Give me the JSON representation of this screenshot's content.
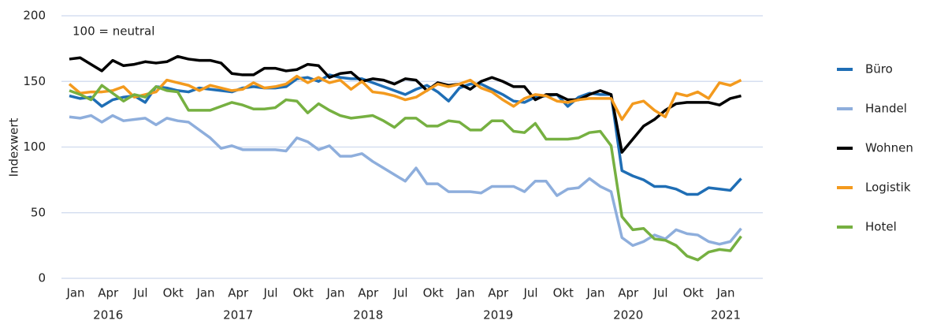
{
  "chart_data": {
    "type": "line",
    "annotation": "100 = neutral",
    "y_label": "Indexwert",
    "categories": [
      "Jan",
      null,
      null,
      "Apr",
      null,
      null,
      "Jul",
      null,
      null,
      "Okt",
      null,
      null,
      "Jan",
      null,
      null,
      "Apr",
      null,
      null,
      "Jul",
      null,
      null,
      "Okt",
      null,
      null,
      "Jan",
      null,
      null,
      "Apr",
      null,
      null,
      "Jul",
      null,
      null,
      "Okt",
      null,
      null,
      "Jan",
      null,
      null,
      "Apr",
      null,
      null,
      "Jul",
      null,
      null,
      "Okt",
      null,
      null,
      "Jan",
      null,
      null,
      "Apr",
      null,
      null,
      "Jul",
      null,
      null,
      "Okt",
      null,
      null,
      "Jan",
      null,
      null
    ],
    "years": [
      "2016",
      "2017",
      "2018",
      "2019",
      "2020",
      "2021"
    ],
    "ylim": [
      0,
      200
    ],
    "yticks": [
      0,
      50,
      100,
      150,
      200
    ],
    "grid": true,
    "legend": "right",
    "series": [
      {
        "name": "Büro",
        "color": "#1f6eb5",
        "values": [
          139,
          137,
          138,
          131,
          136,
          138,
          139,
          134,
          146,
          145,
          143,
          142,
          145,
          144,
          143,
          142,
          145,
          146,
          145,
          145,
          146,
          152,
          153,
          150,
          155,
          153,
          152,
          152,
          149,
          146,
          143,
          140,
          144,
          147,
          142,
          135,
          145,
          148,
          148,
          144,
          140,
          135,
          134,
          138,
          139,
          140,
          131,
          138,
          141,
          140,
          140,
          82,
          78,
          75,
          70,
          70,
          68,
          64,
          64,
          69,
          68,
          67,
          76
        ]
      },
      {
        "name": "Handel",
        "color": "#8eaedc",
        "values": [
          123,
          122,
          124,
          119,
          124,
          120,
          121,
          122,
          117,
          122,
          120,
          119,
          113,
          107,
          99,
          101,
          98,
          98,
          98,
          98,
          97,
          107,
          104,
          98,
          101,
          93,
          93,
          95,
          89,
          84,
          79,
          74,
          84,
          72,
          72,
          66,
          66,
          66,
          65,
          70,
          70,
          70,
          66,
          74,
          74,
          63,
          68,
          69,
          76,
          70,
          66,
          31,
          25,
          28,
          33,
          30,
          37,
          34,
          33,
          28,
          26,
          28,
          38
        ]
      },
      {
        "name": "Wohnen",
        "color": "#000000",
        "values": [
          167,
          168,
          163,
          158,
          166,
          162,
          163,
          165,
          164,
          165,
          169,
          167,
          166,
          166,
          164,
          156,
          155,
          155,
          160,
          160,
          158,
          159,
          163,
          162,
          153,
          156,
          157,
          150,
          152,
          151,
          148,
          152,
          151,
          143,
          149,
          147,
          148,
          144,
          150,
          153,
          150,
          146,
          146,
          136,
          140,
          140,
          136,
          136,
          140,
          143,
          140,
          96,
          106,
          116,
          121,
          128,
          133,
          134,
          134,
          134,
          132,
          137,
          139
        ]
      },
      {
        "name": "Logistik",
        "color": "#f39a1e",
        "values": [
          148,
          141,
          142,
          142,
          143,
          146,
          138,
          140,
          142,
          151,
          149,
          147,
          143,
          147,
          145,
          143,
          144,
          149,
          145,
          146,
          148,
          154,
          149,
          153,
          149,
          151,
          144,
          150,
          142,
          141,
          139,
          136,
          138,
          143,
          148,
          146,
          148,
          151,
          145,
          142,
          136,
          131,
          137,
          140,
          139,
          135,
          134,
          136,
          137,
          137,
          137,
          121,
          133,
          135,
          128,
          123,
          141,
          139,
          142,
          137,
          149,
          147,
          151
        ]
      },
      {
        "name": "Hotel",
        "color": "#76b041",
        "values": [
          143,
          140,
          136,
          147,
          141,
          135,
          140,
          138,
          146,
          143,
          142,
          128,
          128,
          128,
          131,
          134,
          132,
          129,
          129,
          130,
          136,
          135,
          126,
          133,
          128,
          124,
          122,
          123,
          124,
          120,
          115,
          122,
          122,
          116,
          116,
          120,
          119,
          113,
          113,
          120,
          120,
          112,
          111,
          118,
          106,
          106,
          106,
          107,
          111,
          112,
          101,
          47,
          37,
          38,
          30,
          29,
          25,
          17,
          14,
          20,
          22,
          21,
          32
        ]
      }
    ]
  }
}
